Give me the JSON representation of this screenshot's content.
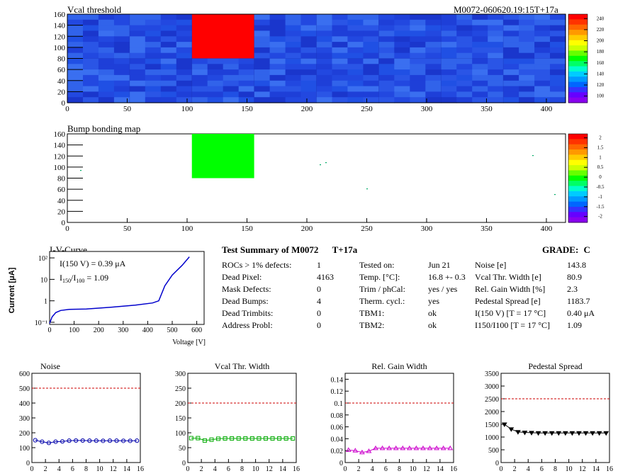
{
  "vcal_map": {
    "title": "Vcal threshold",
    "module_tag": "M0072-060620.19:15T+17a",
    "x_ticks": [
      "0",
      "50",
      "100",
      "150",
      "200",
      "250",
      "300",
      "350",
      "400"
    ],
    "y_ticks": [
      "0",
      "20",
      "40",
      "60",
      "80",
      "100",
      "120",
      "140",
      "160"
    ],
    "z_ticks": [
      "100",
      "120",
      "140",
      "160",
      "180",
      "200",
      "220",
      "240"
    ],
    "highlight_color": "#ff0000",
    "base_color": "#2a55e6"
  },
  "bump_map": {
    "title": "Bump bonding map",
    "x_ticks": [
      "0",
      "50",
      "100",
      "150",
      "200",
      "250",
      "300",
      "350",
      "400"
    ],
    "y_ticks": [
      "0",
      "20",
      "40",
      "60",
      "80",
      "100",
      "120",
      "140",
      "160"
    ],
    "z_ticks": [
      "-2",
      "-1.5",
      "-1",
      "-0.5",
      "0",
      "0.5",
      "1",
      "1.5",
      "2"
    ],
    "highlight_color": "#00ff00"
  },
  "iv_curve": {
    "title": "I-V-Curve",
    "ylabel": "Current [μA]",
    "xlabel": "Voltage [V]",
    "x_ticks": [
      "0",
      "100",
      "200",
      "300",
      "400",
      "500",
      "600"
    ],
    "y_ticks": [
      "10⁻¹",
      "1",
      "10",
      "10²"
    ],
    "annot1": "I(150 V) = 0.39 μA",
    "annot2": "I150/I100 =  1.09",
    "line_color": "#0000cc"
  },
  "summary": {
    "title": "Test Summary of M0072",
    "tag": "T+17a",
    "grade_label": "GRADE:",
    "grade": "C",
    "col1": [
      {
        "label": "ROCs > 1% defects:",
        "value": "1"
      },
      {
        "label": "Dead Pixel:",
        "value": "4163"
      },
      {
        "label": "Mask Defects:",
        "value": "0"
      },
      {
        "label": "Dead Bumps:",
        "value": "4"
      },
      {
        "label": "Dead Trimbits:",
        "value": "0"
      },
      {
        "label": "Address Probl:",
        "value": "0"
      }
    ],
    "col2": [
      {
        "label": "Tested on:",
        "value": "Jun 21"
      },
      {
        "label": "Temp. [°C]:",
        "value": "16.8 +- 0.3"
      },
      {
        "label": "Trim / phCal:",
        "value": "yes / yes"
      },
      {
        "label": "Therm. cycl.:",
        "value": "yes"
      },
      {
        "label": "TBM1:",
        "value": "ok"
      },
      {
        "label": "TBM2:",
        "value": "ok"
      }
    ],
    "col3": [
      {
        "label": "Noise [e]",
        "value": "143.8"
      },
      {
        "label": "Vcal Thr. Width [e]",
        "value": "80.9"
      },
      {
        "label": "Rel. Gain Width [%]",
        "value": "2.3"
      },
      {
        "label": "Pedestal Spread [e]",
        "value": "1183.7"
      },
      {
        "label": "I(150 V) [T = 17 °C]",
        "value": "0.40 μA"
      },
      {
        "label": "I150/I100  [T = 17 °C]",
        "value": "1.09"
      }
    ]
  },
  "chart_data": [
    {
      "type": "line",
      "title": "Noise",
      "x": [
        0,
        1,
        2,
        3,
        4,
        5,
        6,
        7,
        8,
        9,
        10,
        11,
        12,
        13,
        14,
        15
      ],
      "values": [
        150,
        140,
        132,
        140,
        142,
        147,
        148,
        148,
        147,
        147,
        146,
        147,
        147,
        146,
        146,
        147
      ],
      "ylim": [
        0,
        600
      ],
      "y_ticks": [
        "0",
        "100",
        "200",
        "300",
        "400",
        "500",
        "600"
      ],
      "x_ticks": [
        "0",
        "2",
        "4",
        "6",
        "8",
        "10",
        "12",
        "14",
        "16"
      ],
      "xlim": [
        0,
        16
      ],
      "limit": 500,
      "color": "#0000aa",
      "marker": "circle"
    },
    {
      "type": "line",
      "title": "Vcal Thr. Width",
      "x": [
        0,
        1,
        2,
        3,
        4,
        5,
        6,
        7,
        8,
        9,
        10,
        11,
        12,
        13,
        14,
        15
      ],
      "values": [
        82,
        82,
        74,
        77,
        80,
        81,
        81,
        81,
        81,
        81,
        81,
        81,
        81,
        81,
        81,
        81
      ],
      "ylim": [
        0,
        300
      ],
      "y_ticks": [
        "0",
        "50",
        "100",
        "150",
        "200",
        "250",
        "300"
      ],
      "x_ticks": [
        "0",
        "2",
        "4",
        "6",
        "8",
        "10",
        "12",
        "14",
        "16"
      ],
      "xlim": [
        0,
        16
      ],
      "limit": 200,
      "color": "#00aa00",
      "marker": "square"
    },
    {
      "type": "line",
      "title": "Rel. Gain Width",
      "x": [
        0,
        1,
        2,
        3,
        4,
        5,
        6,
        7,
        8,
        9,
        10,
        11,
        12,
        13,
        14,
        15
      ],
      "values": [
        0.021,
        0.02,
        0.017,
        0.019,
        0.024,
        0.024,
        0.024,
        0.024,
        0.024,
        0.024,
        0.024,
        0.024,
        0.024,
        0.024,
        0.024,
        0.024
      ],
      "ylim": [
        0,
        0.15
      ],
      "y_ticks": [
        "0",
        "0.02",
        "0.04",
        "0.06",
        "0.08",
        "0.1",
        "0.12",
        "0.14"
      ],
      "x_ticks": [
        "0",
        "2",
        "4",
        "6",
        "8",
        "10",
        "12",
        "14",
        "16"
      ],
      "xlim": [
        0,
        16
      ],
      "limit": 0.1,
      "color": "#cc00cc",
      "marker": "triangle"
    },
    {
      "type": "line",
      "title": "Pedestal Spread",
      "x": [
        0,
        1,
        2,
        3,
        4,
        5,
        6,
        7,
        8,
        9,
        10,
        11,
        12,
        13,
        14,
        15
      ],
      "values": [
        1500,
        1310,
        1200,
        1180,
        1170,
        1160,
        1160,
        1160,
        1160,
        1160,
        1160,
        1160,
        1160,
        1160,
        1160,
        1160
      ],
      "ylim": [
        0,
        3500
      ],
      "y_ticks": [
        "0",
        "500",
        "1000",
        "1500",
        "2000",
        "2500",
        "3000",
        "3500"
      ],
      "x_ticks": [
        "0",
        "2",
        "4",
        "6",
        "8",
        "10",
        "12",
        "14",
        "16"
      ],
      "xlim": [
        0,
        16
      ],
      "limit": 2500,
      "color": "#000000",
      "marker": "triangle-down"
    }
  ]
}
